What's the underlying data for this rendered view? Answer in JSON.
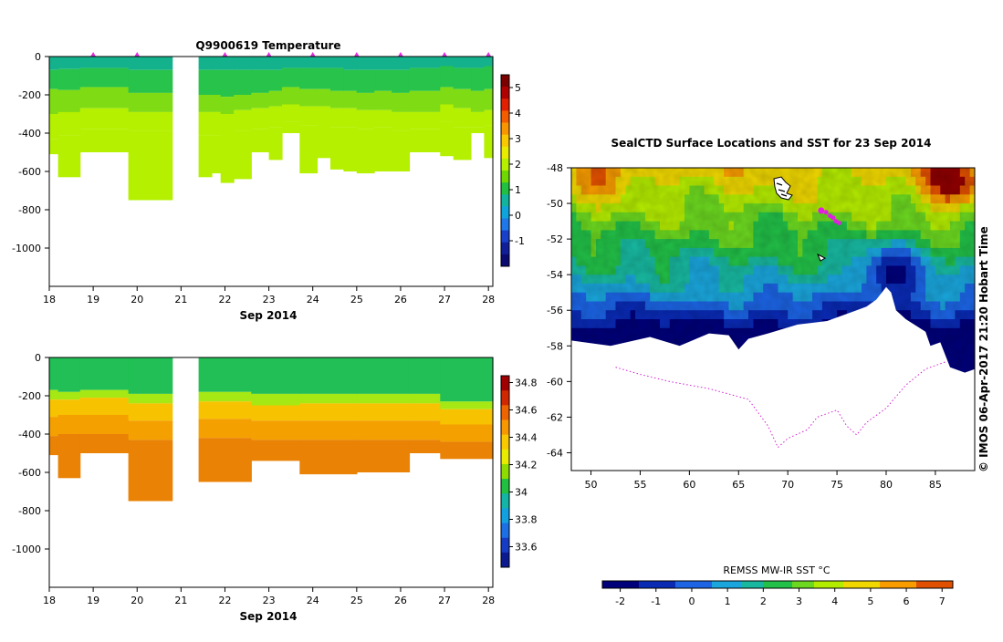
{
  "chart_data": [
    {
      "id": "temp",
      "type": "heatmap",
      "title": "Q9900619  Temperature",
      "xlabel": "Sep 2014",
      "x_ticks": [
        18,
        19,
        20,
        21,
        22,
        23,
        24,
        25,
        26,
        27,
        28
      ],
      "xlim": [
        18,
        28.1
      ],
      "y_ticks": [
        0,
        -200,
        -400,
        -600,
        -800,
        -1000
      ],
      "ylim": [
        -1200,
        0
      ],
      "colorbar_ticks": [
        "5",
        "4",
        "3",
        "2",
        "1",
        "0",
        "-1"
      ],
      "colorbar_range": [
        -2,
        5.5
      ],
      "surface_markers": [
        19,
        20,
        22,
        23,
        24,
        25,
        26,
        27,
        28
      ],
      "marker_color": "#e030e0",
      "profiles": [
        {
          "x0": 18.0,
          "x1": 18.2,
          "b": [
            -70,
            -170,
            -300,
            -430
          ],
          "max": -510
        },
        {
          "x0": 18.2,
          "x1": 18.7,
          "b": [
            -65,
            -175,
            -290,
            -410
          ],
          "max": -630
        },
        {
          "x0": 18.7,
          "x1": 19.8,
          "b": [
            -60,
            -160,
            -270,
            -380
          ],
          "max": -500
        },
        {
          "x0": 19.8,
          "x1": 20.8,
          "b": [
            -70,
            -190,
            -290,
            -390
          ],
          "max": -750
        },
        {
          "x0": 21.4,
          "x1": 21.7,
          "b": [
            -70,
            -200,
            -290,
            -410
          ],
          "max": -630
        },
        {
          "x0": 21.7,
          "x1": 21.9,
          "b": [
            -70,
            -200,
            -290,
            -410
          ],
          "max": -610
        },
        {
          "x0": 21.9,
          "x1": 22.2,
          "b": [
            -70,
            -210,
            -300,
            -400
          ],
          "max": -660
        },
        {
          "x0": 22.2,
          "x1": 22.6,
          "b": [
            -70,
            -200,
            -280,
            -390
          ],
          "max": -640
        },
        {
          "x0": 22.6,
          "x1": 23.0,
          "b": [
            -70,
            -190,
            -270,
            -380
          ],
          "max": -500
        },
        {
          "x0": 23.0,
          "x1": 23.3,
          "b": [
            -70,
            -180,
            -260,
            -370
          ],
          "max": -540
        },
        {
          "x0": 23.3,
          "x1": 23.7,
          "b": [
            -60,
            -160,
            -250,
            -340
          ],
          "max": -400
        },
        {
          "x0": 23.7,
          "x1": 24.1,
          "b": [
            -60,
            -170,
            -260,
            -360
          ],
          "max": -610
        },
        {
          "x0": 24.1,
          "x1": 24.4,
          "b": [
            -60,
            -170,
            -260,
            -350
          ],
          "max": -530
        },
        {
          "x0": 24.4,
          "x1": 24.7,
          "b": [
            -60,
            -180,
            -270,
            -370
          ],
          "max": -590
        },
        {
          "x0": 24.7,
          "x1": 25.0,
          "b": [
            -70,
            -180,
            -270,
            -370
          ],
          "max": -600
        },
        {
          "x0": 25.0,
          "x1": 25.4,
          "b": [
            -70,
            -190,
            -280,
            -380
          ],
          "max": -610
        },
        {
          "x0": 25.4,
          "x1": 25.8,
          "b": [
            -70,
            -180,
            -280,
            -370
          ],
          "max": -600
        },
        {
          "x0": 25.8,
          "x1": 26.2,
          "b": [
            -70,
            -190,
            -290,
            -390
          ],
          "max": -600
        },
        {
          "x0": 26.2,
          "x1": 26.9,
          "b": [
            -60,
            -180,
            -290,
            -380
          ],
          "max": -500
        },
        {
          "x0": 26.9,
          "x1": 27.2,
          "b": [
            -50,
            -160,
            -250,
            -340
          ],
          "max": -520
        },
        {
          "x0": 27.2,
          "x1": 27.6,
          "b": [
            -60,
            -170,
            -270,
            -370
          ],
          "max": -540
        },
        {
          "x0": 27.6,
          "x1": 27.9,
          "b": [
            -60,
            -180,
            -290,
            -370
          ],
          "max": -400
        },
        {
          "x0": 27.9,
          "x1": 28.1,
          "b": [
            -50,
            -170,
            -280,
            -360
          ],
          "max": -530
        }
      ]
    },
    {
      "id": "sal",
      "type": "heatmap",
      "title": "",
      "xlabel": "Sep 2014",
      "x_ticks": [
        18,
        19,
        20,
        21,
        22,
        23,
        24,
        25,
        26,
        27,
        28
      ],
      "xlim": [
        18,
        28.1
      ],
      "y_ticks": [
        0,
        -200,
        -400,
        -600,
        -800,
        -1000
      ],
      "ylim": [
        -1200,
        0
      ],
      "colorbar_ticks": [
        "34.8",
        "34.6",
        "34.4",
        "34.2",
        "34",
        "33.8",
        "33.6"
      ],
      "colorbar_range": [
        33.45,
        34.85
      ],
      "profiles": [
        {
          "x0": 18.0,
          "x1": 18.2,
          "b": [
            -170,
            -220,
            -310,
            -410
          ],
          "max": -510
        },
        {
          "x0": 18.2,
          "x1": 18.7,
          "b": [
            -180,
            -220,
            -300,
            -400
          ],
          "max": -630
        },
        {
          "x0": 18.7,
          "x1": 19.8,
          "b": [
            -170,
            -210,
            -300,
            -400
          ],
          "max": -500
        },
        {
          "x0": 19.8,
          "x1": 20.8,
          "b": [
            -190,
            -240,
            -330,
            -430
          ],
          "max": -750
        },
        {
          "x0": 21.4,
          "x1": 22.6,
          "b": [
            -180,
            -230,
            -320,
            -420
          ],
          "max": -650
        },
        {
          "x0": 22.6,
          "x1": 23.7,
          "b": [
            -190,
            -250,
            -330,
            -430
          ],
          "max": -540
        },
        {
          "x0": 23.7,
          "x1": 25.0,
          "b": [
            -190,
            -240,
            -330,
            -430
          ],
          "max": -610
        },
        {
          "x0": 25.0,
          "x1": 26.2,
          "b": [
            -190,
            -240,
            -330,
            -430
          ],
          "max": -600
        },
        {
          "x0": 26.2,
          "x1": 26.9,
          "b": [
            -190,
            -240,
            -330,
            -430
          ],
          "max": -500
        },
        {
          "x0": 26.9,
          "x1": 28.1,
          "b": [
            -230,
            -270,
            -350,
            -440
          ],
          "max": -530
        }
      ]
    },
    {
      "id": "map",
      "type": "heatmap",
      "title": "SealCTD Surface Locations and SST for 23 Sep 2014",
      "x_ticks": [
        50,
        55,
        60,
        65,
        70,
        75,
        80,
        85
      ],
      "xlim": [
        48,
        89
      ],
      "y_ticks": [
        -48,
        -50,
        -52,
        -54,
        -56,
        -58,
        -60,
        -62,
        -64
      ],
      "ylim": [
        -65,
        -48
      ],
      "colorbar_label": "REMSS MW-IR SST °C",
      "colorbar_ticks": [
        "-2",
        "-1",
        "0",
        "1",
        "2",
        "3",
        "4",
        "5",
        "6",
        "7"
      ],
      "colorbar_range": [
        -2.5,
        7.3
      ],
      "side_text": "© IMOS 06-Apr-2017 21:20 Hobart Time",
      "seal_track": [
        [
          73.4,
          -50.4
        ],
        [
          73.9,
          -50.5
        ],
        [
          74.3,
          -50.7
        ],
        [
          74.6,
          -50.8
        ],
        [
          74.9,
          -51.0
        ],
        [
          75.2,
          -51.1
        ]
      ],
      "land_coast": [
        [
          48,
          -57.7
        ],
        [
          52,
          -58.0
        ],
        [
          56,
          -57.5
        ],
        [
          59,
          -58.0
        ],
        [
          62,
          -57.3
        ],
        [
          64,
          -57.4
        ],
        [
          65,
          -58.2
        ],
        [
          66,
          -57.6
        ],
        [
          68,
          -57.3
        ],
        [
          71,
          -56.8
        ],
        [
          74,
          -56.6
        ],
        [
          77,
          -56.0
        ],
        [
          78,
          -55.8
        ],
        [
          79,
          -55.4
        ],
        [
          80,
          -54.7
        ],
        [
          80.5,
          -55.0
        ],
        [
          81,
          -56.0
        ],
        [
          82,
          -56.5
        ],
        [
          84,
          -57.2
        ],
        [
          84.5,
          -58.0
        ],
        [
          85.5,
          -57.8
        ],
        [
          86.5,
          -59.2
        ],
        [
          88,
          -59.5
        ],
        [
          89,
          -59.3
        ]
      ],
      "ice_edge": [
        [
          52.5,
          -59.2
        ],
        [
          55,
          -59.6
        ],
        [
          58,
          -60.0
        ],
        [
          62,
          -60.4
        ],
        [
          66,
          -61.0
        ],
        [
          68,
          -62.5
        ],
        [
          69,
          -63.7
        ],
        [
          70,
          -63.2
        ],
        [
          72,
          -62.7
        ],
        [
          73,
          -62.0
        ],
        [
          75,
          -61.6
        ],
        [
          76,
          -62.5
        ],
        [
          77,
          -63.0
        ],
        [
          78,
          -62.3
        ],
        [
          80,
          -61.5
        ],
        [
          82,
          -60.2
        ],
        [
          84,
          -59.3
        ],
        [
          86,
          -58.9
        ]
      ]
    }
  ]
}
